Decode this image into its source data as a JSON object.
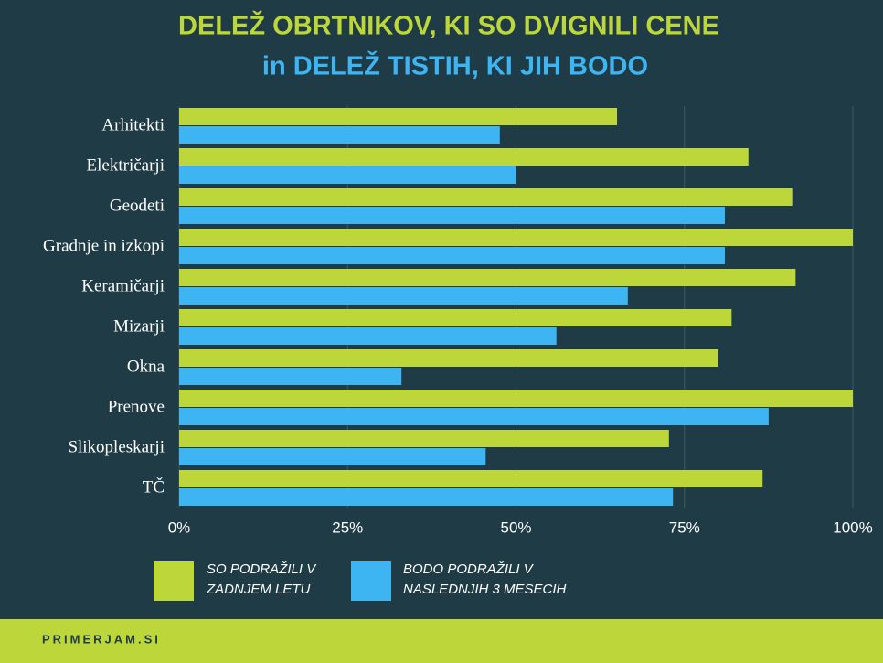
{
  "chart_data": {
    "type": "hbar",
    "title": "DELEŽ OBRTNIKOV, KI SO DVIGNILI CENE",
    "subtitle": "in DELEŽ TISTIH, KI JIH BODO",
    "categories": [
      "Arhitekti",
      "Električarji",
      "Geodeti",
      "Gradnje in izkopi",
      "Keramičarji",
      "Mizarji",
      "Okna",
      "Prenove",
      "Slikopleskarji",
      "TČ"
    ],
    "series": [
      {
        "name": "SO PODRAŽILI V ZADNJEM LETU",
        "color": "#bdd73a",
        "values": [
          65,
          84.5,
          91,
          100,
          91.5,
          82,
          80,
          100,
          72.7,
          86.6
        ]
      },
      {
        "name": "BODO PODRAŽILI V NASLEDNJIH 3 MESECIH",
        "color": "#3db5f3",
        "values": [
          47.6,
          50,
          81,
          81,
          66.6,
          56,
          33,
          87.5,
          45.5,
          73.3
        ]
      }
    ],
    "xlim": [
      0,
      100
    ],
    "xticks": [
      {
        "value": 0,
        "label": "0%"
      },
      {
        "value": 25,
        "label": "25%"
      },
      {
        "value": 50,
        "label": "50%"
      },
      {
        "value": 75,
        "label": "75%"
      },
      {
        "value": 100,
        "label": "100%"
      }
    ],
    "grid": true,
    "footer": "PRIMERJAM.SI"
  }
}
